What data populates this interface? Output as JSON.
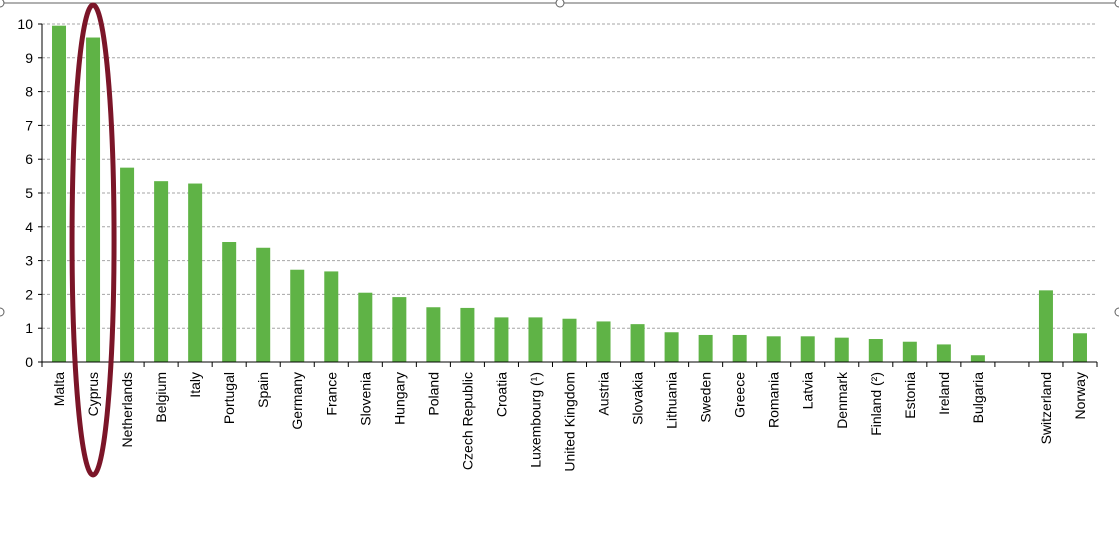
{
  "chart_data": {
    "type": "bar",
    "title": "",
    "xlabel": "",
    "ylabel": "",
    "ylim": [
      0,
      10
    ],
    "yticks": [
      "0",
      "1",
      "2",
      "3",
      "4",
      "5",
      "6",
      "7",
      "8",
      "9",
      "10"
    ],
    "grid": true,
    "legend": "none",
    "bar_color": "#5fb346",
    "highlight_color": "#7b1528",
    "highlighted_category": "Cyprus",
    "categories": [
      "Malta",
      "Cyprus",
      "Netherlands",
      "Belgium",
      "Italy",
      "Portugal",
      "Spain",
      "Germany",
      "France",
      "Slovenia",
      "Hungary",
      "Poland",
      "Czech Republic",
      "Croatia",
      "Luxembourg (¹)",
      "United Kingdom",
      "Austria",
      "Slovakia",
      "Lithuania",
      "Sweden",
      "Greece",
      "Romania",
      "Latvia",
      "Denmark",
      "Finland (²)",
      "Estonia",
      "Ireland",
      "Bulgaria",
      "Switzerland",
      "Norway"
    ],
    "values": [
      9.95,
      9.6,
      5.75,
      5.35,
      5.28,
      3.55,
      3.38,
      2.73,
      2.68,
      2.05,
      1.92,
      1.62,
      1.6,
      1.32,
      1.32,
      1.28,
      1.2,
      1.12,
      0.88,
      0.8,
      0.8,
      0.76,
      0.76,
      0.72,
      0.68,
      0.6,
      0.52,
      0.2,
      2.12,
      0.85
    ]
  }
}
